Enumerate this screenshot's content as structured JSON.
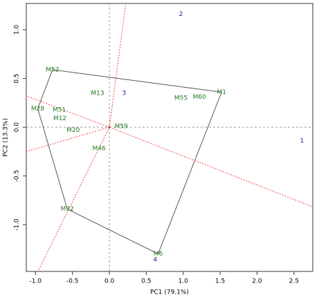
{
  "chart_data": {
    "type": "scatter",
    "xlabel": "PC1 (79.1%)",
    "ylabel": "PC2 (13.3%)",
    "xlim": [
      -1.125,
      2.755
    ],
    "ylim": [
      -1.48,
      1.27
    ],
    "xticks": [
      {
        "value": -1,
        "label": "-1.0"
      },
      {
        "value": -0.5,
        "label": "-0.5"
      },
      {
        "value": 0,
        "label": "0.0"
      },
      {
        "value": 0.5,
        "label": "0.5"
      },
      {
        "value": 1,
        "label": "1.0"
      },
      {
        "value": 1.5,
        "label": "1.5"
      },
      {
        "value": 2,
        "label": "2.0"
      },
      {
        "value": 2.5,
        "label": "2.5"
      }
    ],
    "yticks": [
      {
        "value": -1,
        "label": "-1.0"
      },
      {
        "value": -0.5,
        "label": "-0.5"
      },
      {
        "value": 0,
        "label": "0.0"
      },
      {
        "value": 0.5,
        "label": "0.5"
      },
      {
        "value": 1,
        "label": "1.0"
      }
    ],
    "series": [
      {
        "color": "#1f7a1f",
        "labels": [
          "M52",
          "M28",
          "M51",
          "M12",
          "M20",
          "M13",
          "M59",
          "M46",
          "M32",
          "M6",
          "M55",
          "M60",
          "M1"
        ],
        "x": [
          -0.77,
          -0.97,
          -0.68,
          -0.67,
          -0.49,
          -0.16,
          0.16,
          -0.14,
          -0.57,
          0.66,
          0.97,
          1.22,
          1.52
        ],
        "values": [
          0.59,
          0.19,
          0.18,
          0.09,
          -0.03,
          0.35,
          0.01,
          -0.22,
          -0.84,
          -1.3,
          0.3,
          0.31,
          0.36
        ]
      },
      {
        "color": "#1a1aaa",
        "labels": [
          "1",
          "2",
          "3",
          "4"
        ],
        "x": [
          2.61,
          0.97,
          0.2,
          0.62
        ],
        "values": [
          -0.14,
          1.16,
          0.35,
          -1.36
        ]
      }
    ]
  }
}
